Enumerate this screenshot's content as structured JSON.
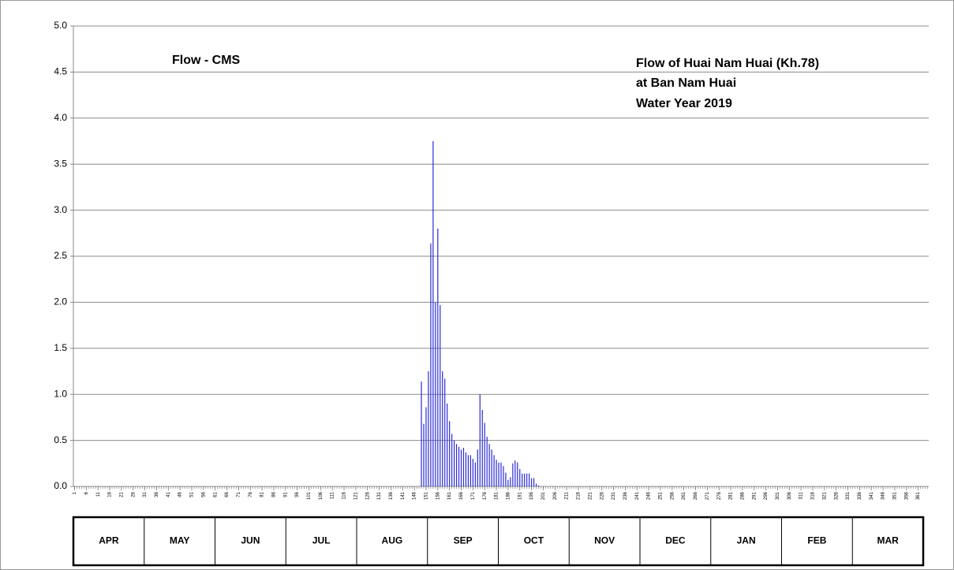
{
  "chart_data": {
    "type": "bar",
    "annotation": "Flow - CMS",
    "title_lines": [
      "Flow of Huai Nam Huai (Kh.78)",
      "at Ban Nam Huai",
      "Water Year 2019"
    ],
    "color": "#2b2bd6",
    "grid": true,
    "xlim": [
      0.5,
      365.5
    ],
    "ylim": [
      0,
      5
    ],
    "yticks": [
      {
        "value": 0,
        "label": "0.0"
      },
      {
        "value": 0.5,
        "label": "0.5"
      },
      {
        "value": 1,
        "label": "1.0"
      },
      {
        "value": 1.5,
        "label": "1.5"
      },
      {
        "value": 2,
        "label": "2.0"
      },
      {
        "value": 2.5,
        "label": "2.5"
      },
      {
        "value": 3,
        "label": "3.0"
      },
      {
        "value": 3.5,
        "label": "3.5"
      },
      {
        "value": 4,
        "label": "4.0"
      },
      {
        "value": 4.5,
        "label": "4.5"
      },
      {
        "value": 5,
        "label": "5.0"
      }
    ],
    "xticks": [
      1,
      6,
      11,
      16,
      21,
      26,
      31,
      36,
      41,
      46,
      51,
      56,
      61,
      66,
      71,
      76,
      81,
      86,
      91,
      96,
      101,
      106,
      111,
      116,
      121,
      126,
      131,
      136,
      141,
      146,
      151,
      156,
      161,
      166,
      171,
      176,
      181,
      186,
      191,
      196,
      201,
      206,
      211,
      216,
      221,
      226,
      231,
      236,
      241,
      246,
      251,
      256,
      261,
      266,
      271,
      276,
      281,
      286,
      291,
      296,
      301,
      306,
      311,
      316,
      321,
      326,
      331,
      336,
      341,
      346,
      351,
      356,
      361
    ],
    "months": [
      "APR",
      "MAY",
      "JUN",
      "JUL",
      "AUG",
      "SEP",
      "OCT",
      "NOV",
      "DEC",
      "JAN",
      "FEB",
      "MAR"
    ],
    "x": [
      1,
      2,
      3,
      4,
      5,
      6,
      7,
      8,
      9,
      10,
      11,
      12,
      13,
      14,
      15,
      16,
      17,
      18,
      19,
      20,
      21,
      22,
      23,
      24,
      25,
      26,
      27,
      28,
      29,
      30,
      31,
      32,
      33,
      34,
      35,
      36,
      37,
      38,
      39,
      40,
      41,
      42,
      43,
      44,
      45,
      46,
      47,
      48,
      49,
      50,
      51,
      52,
      53,
      54,
      55,
      56,
      57,
      58,
      59,
      60,
      61,
      62,
      63,
      64,
      65,
      66,
      67,
      68,
      69,
      70,
      71,
      72,
      73,
      74,
      75,
      76,
      77,
      78,
      79,
      80,
      81,
      82,
      83,
      84,
      85,
      86,
      87,
      88,
      89,
      90,
      91,
      92,
      93,
      94,
      95,
      96,
      97,
      98,
      99,
      100,
      101,
      102,
      103,
      104,
      105,
      106,
      107,
      108,
      109,
      110,
      111,
      112,
      113,
      114,
      115,
      116,
      117,
      118,
      119,
      120,
      121,
      122,
      123,
      124,
      125,
      126,
      127,
      128,
      129,
      130,
      131,
      132,
      133,
      134,
      135,
      136,
      137,
      138,
      139,
      140,
      141,
      142,
      143,
      144,
      145,
      146,
      147,
      148,
      149,
      150,
      151,
      152,
      153,
      154,
      155,
      156,
      157,
      158,
      159,
      160,
      161,
      162,
      163,
      164,
      165,
      166,
      167,
      168,
      169,
      170,
      171,
      172,
      173,
      174,
      175,
      176,
      177,
      178,
      179,
      180,
      181,
      182,
      183,
      184,
      185,
      186,
      187,
      188,
      189,
      190,
      191,
      192,
      193,
      194,
      195,
      196,
      197,
      198,
      199,
      200,
      201,
      202,
      203,
      204,
      205,
      206,
      207,
      208,
      209,
      210,
      211,
      212,
      213,
      214,
      215,
      216,
      217,
      218,
      219,
      220,
      221,
      222,
      223,
      224,
      225,
      226,
      227,
      228,
      229,
      230,
      231,
      232,
      233,
      234,
      235,
      236,
      237,
      238,
      239,
      240,
      241,
      242,
      243,
      244,
      245,
      246,
      247,
      248,
      249,
      250,
      251,
      252,
      253,
      254,
      255,
      256,
      257,
      258,
      259,
      260,
      261,
      262,
      263,
      264,
      265,
      266,
      267,
      268,
      269,
      270,
      271,
      272,
      273,
      274,
      275,
      276,
      277,
      278,
      279,
      280,
      281,
      282,
      283,
      284,
      285,
      286,
      287,
      288,
      289,
      290,
      291,
      292,
      293,
      294,
      295,
      296,
      297,
      298,
      299,
      300,
      301,
      302,
      303,
      304,
      305,
      306,
      307,
      308,
      309,
      310,
      311,
      312,
      313,
      314,
      315,
      316,
      317,
      318,
      319,
      320,
      321,
      322,
      323,
      324,
      325,
      326,
      327,
      328,
      329,
      330,
      331,
      332,
      333,
      334,
      335,
      336,
      337,
      338,
      339,
      340,
      341,
      342,
      343,
      344,
      345,
      346,
      347,
      348,
      349,
      350,
      351,
      352,
      353,
      354,
      355,
      356,
      357,
      358,
      359,
      360,
      361,
      362,
      363,
      364,
      365
    ],
    "values": [
      0,
      0,
      0,
      0,
      0,
      0,
      0,
      0,
      0,
      0,
      0,
      0,
      0,
      0,
      0,
      0,
      0,
      0,
      0,
      0,
      0,
      0,
      0,
      0,
      0,
      0,
      0,
      0,
      0,
      0,
      0,
      0,
      0,
      0,
      0,
      0,
      0,
      0,
      0,
      0,
      0,
      0,
      0,
      0,
      0,
      0,
      0,
      0,
      0,
      0,
      0,
      0,
      0,
      0,
      0,
      0,
      0,
      0,
      0,
      0,
      0,
      0,
      0,
      0,
      0,
      0,
      0,
      0,
      0,
      0,
      0,
      0,
      0,
      0,
      0,
      0,
      0,
      0,
      0,
      0,
      0,
      0,
      0,
      0,
      0,
      0,
      0,
      0,
      0,
      0,
      0,
      0,
      0,
      0,
      0,
      0,
      0,
      0,
      0,
      0,
      0,
      0,
      0,
      0,
      0,
      0,
      0,
      0,
      0,
      0,
      0,
      0,
      0,
      0,
      0,
      0,
      0,
      0,
      0,
      0,
      0,
      0,
      0,
      0,
      0,
      0,
      0,
      0,
      0,
      0,
      0,
      0,
      0,
      0,
      0,
      0,
      0,
      0,
      0,
      0,
      0,
      0,
      0,
      0,
      0,
      0,
      0,
      0,
      1.14,
      0.68,
      0.86,
      1.25,
      2.64,
      3.75,
      2.0,
      2.8,
      1.97,
      1.25,
      1.17,
      0.9,
      0.71,
      0.57,
      0.5,
      0.46,
      0.43,
      0.4,
      0.42,
      0.37,
      0.34,
      0.34,
      0.3,
      0.26,
      0.4,
      1.0,
      0.83,
      0.69,
      0.54,
      0.46,
      0.4,
      0.34,
      0.29,
      0.26,
      0.26,
      0.22,
      0.15,
      0.07,
      0.1,
      0.25,
      0.28,
      0.26,
      0.19,
      0.14,
      0.14,
      0.14,
      0.14,
      0.09,
      0.09,
      0.03,
      0.01,
      0,
      0,
      0,
      0,
      0,
      0,
      0,
      0,
      0,
      0,
      0,
      0,
      0,
      0,
      0,
      0,
      0,
      0,
      0,
      0,
      0,
      0,
      0,
      0,
      0,
      0,
      0,
      0,
      0,
      0,
      0,
      0,
      0,
      0,
      0,
      0,
      0,
      0,
      0,
      0,
      0,
      0,
      0,
      0,
      0,
      0,
      0,
      0,
      0,
      0,
      0,
      0,
      0,
      0,
      0,
      0,
      0,
      0,
      0,
      0,
      0,
      0,
      0,
      0,
      0,
      0,
      0,
      0,
      0,
      0,
      0,
      0,
      0,
      0,
      0,
      0,
      0,
      0,
      0,
      0,
      0,
      0,
      0,
      0,
      0,
      0,
      0,
      0,
      0,
      0,
      0,
      0,
      0,
      0,
      0,
      0,
      0,
      0,
      0,
      0,
      0,
      0,
      0,
      0,
      0,
      0,
      0,
      0,
      0,
      0,
      0,
      0,
      0,
      0,
      0,
      0,
      0,
      0,
      0,
      0,
      0,
      0,
      0,
      0,
      0,
      0,
      0,
      0,
      0,
      0,
      0,
      0,
      0,
      0,
      0,
      0,
      0,
      0,
      0,
      0,
      0,
      0,
      0,
      0,
      0,
      0,
      0,
      0,
      0,
      0,
      0,
      0,
      0,
      0,
      0,
      0,
      0,
      0,
      0,
      0,
      0,
      0,
      0,
      0,
      0,
      0
    ]
  }
}
